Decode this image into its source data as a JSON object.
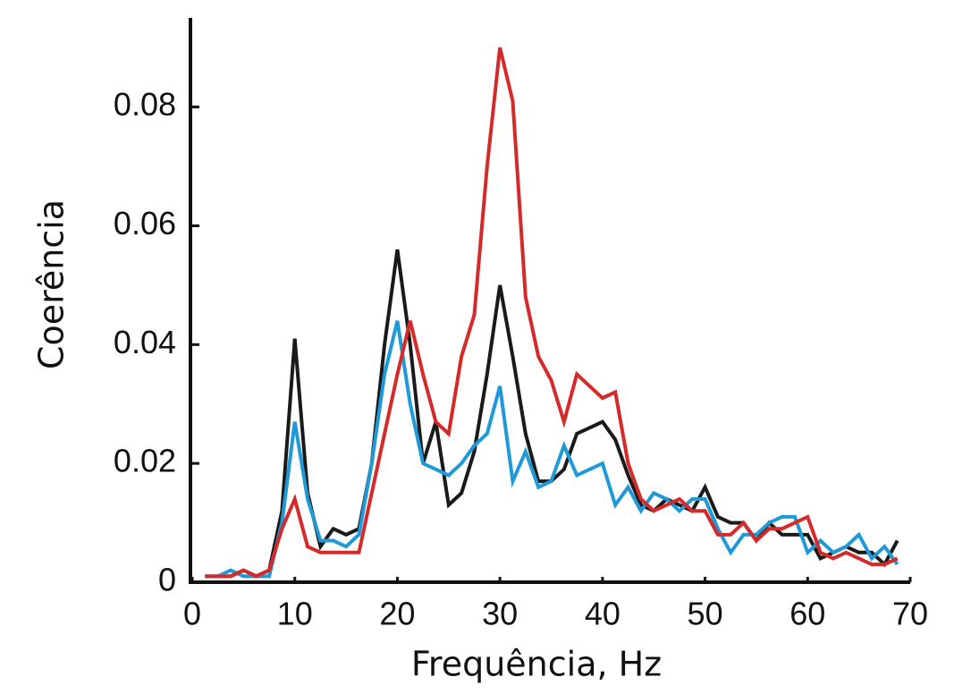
{
  "chart_data": {
    "type": "line",
    "y_label": "Coerência",
    "x_label": "Frequência, Hz",
    "x": [
      1.25,
      2.5,
      3.75,
      5,
      6.25,
      7.5,
      8.75,
      10,
      11.25,
      12.5,
      13.75,
      15,
      16.25,
      17.5,
      18.75,
      20,
      21.25,
      22.5,
      23.75,
      25,
      26.25,
      27.5,
      28.75,
      30,
      31.25,
      32.5,
      33.75,
      35,
      36.25,
      37.5,
      38.75,
      40,
      41.25,
      42.5,
      43.75,
      45,
      46.25,
      47.5,
      48.75,
      50,
      51.25,
      52.5,
      53.75,
      55,
      56.25,
      57.5,
      58.75,
      60,
      61.25,
      62.5,
      63.75,
      65,
      66.25,
      67.5,
      68.75
    ],
    "series": [
      {
        "color": "#1a1a1a",
        "values": [
          0.001,
          0.001,
          0.001,
          0.002,
          0.001,
          0.002,
          0.012,
          0.041,
          0.015,
          0.006,
          0.009,
          0.008,
          0.009,
          0.02,
          0.04,
          0.056,
          0.04,
          0.02,
          0.027,
          0.013,
          0.015,
          0.022,
          0.035,
          0.05,
          0.038,
          0.025,
          0.017,
          0.017,
          0.019,
          0.025,
          0.026,
          0.027,
          0.024,
          0.018,
          0.013,
          0.012,
          0.014,
          0.013,
          0.012,
          0.016,
          0.011,
          0.01,
          0.01,
          0.007,
          0.01,
          0.008,
          0.008,
          0.008,
          0.004,
          0.005,
          0.006,
          0.005,
          0.005,
          0.003,
          0.007
        ]
      },
      {
        "color": "#1f9ad6",
        "values": [
          0.001,
          0.001,
          0.002,
          0.001,
          0.001,
          0.001,
          0.01,
          0.027,
          0.014,
          0.007,
          0.007,
          0.006,
          0.008,
          0.02,
          0.035,
          0.044,
          0.03,
          0.02,
          0.019,
          0.018,
          0.02,
          0.023,
          0.025,
          0.033,
          0.017,
          0.022,
          0.016,
          0.017,
          0.023,
          0.018,
          0.019,
          0.02,
          0.013,
          0.016,
          0.012,
          0.015,
          0.014,
          0.012,
          0.014,
          0.014,
          0.009,
          0.005,
          0.008,
          0.008,
          0.01,
          0.011,
          0.011,
          0.005,
          0.007,
          0.005,
          0.006,
          0.008,
          0.004,
          0.006,
          0.003
        ]
      },
      {
        "color": "#d42a2a",
        "values": [
          0.001,
          0.001,
          0.001,
          0.002,
          0.001,
          0.002,
          0.009,
          0.014,
          0.006,
          0.005,
          0.005,
          0.005,
          0.005,
          0.015,
          0.025,
          0.035,
          0.044,
          0.035,
          0.027,
          0.025,
          0.038,
          0.045,
          0.07,
          0.09,
          0.081,
          0.048,
          0.038,
          0.034,
          0.027,
          0.035,
          0.033,
          0.031,
          0.032,
          0.02,
          0.014,
          0.012,
          0.013,
          0.014,
          0.012,
          0.012,
          0.008,
          0.008,
          0.01,
          0.007,
          0.009,
          0.009,
          0.01,
          0.011,
          0.005,
          0.004,
          0.005,
          0.004,
          0.003,
          0.003,
          0.004
        ]
      }
    ],
    "xlim": [
      0,
      70
    ],
    "xticks": [
      0,
      10,
      20,
      30,
      40,
      50,
      60,
      70
    ],
    "ylim": [
      0,
      0.095
    ],
    "yticks": [
      0,
      0.02,
      0.04,
      0.06,
      0.08
    ],
    "grid": false
  }
}
